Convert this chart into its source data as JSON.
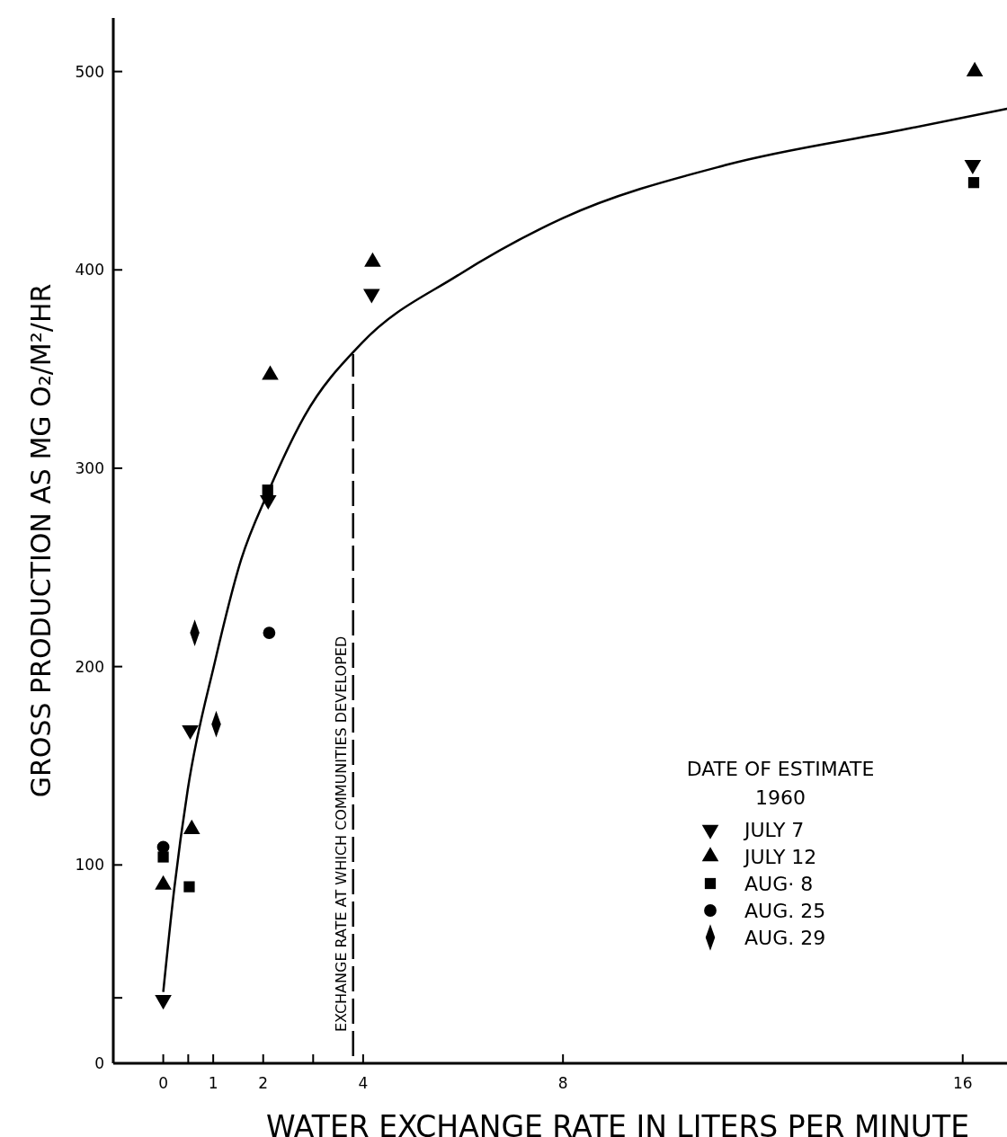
{
  "chart_data": {
    "type": "scatter",
    "xlabel": "WATER EXCHANGE RATE IN LITERS PER MINUTE",
    "ylabel": "GROSS PRODUCTION AS MG O₂/M²/HR",
    "legend_title": "DATE OF ESTIMATE\n1960",
    "legend": "bottom right",
    "grid": false,
    "xlim": [
      -1,
      17.03
    ],
    "ylim": [
      0,
      527
    ],
    "xticks": [
      0,
      {
        "value": 0.5,
        "label": null
      },
      1,
      2,
      {
        "value": 3,
        "label": null
      },
      4,
      8,
      16
    ],
    "yticks": [
      0,
      {
        "value": 33,
        "label": null
      },
      100,
      200,
      300,
      400,
      500
    ],
    "series": [
      {
        "name": "JULY 7",
        "color": "#000000",
        "marker": "triangle-down",
        "x": [
          0,
          0.54,
          2.1,
          4.17,
          16.2
        ],
        "values": [
          32,
          168,
          284,
          388,
          453
        ]
      },
      {
        "name": "JULY 12",
        "color": "#000000",
        "marker": "triangle",
        "x": [
          0,
          0.57,
          2.14,
          4.19,
          16.24
        ],
        "values": [
          90,
          118,
          347,
          404,
          500
        ]
      },
      {
        "name": "AUG· 8",
        "color": "#000000",
        "marker": "square",
        "x": [
          0,
          0.52,
          2.09,
          16.22
        ],
        "values": [
          104,
          89,
          289,
          444
        ]
      },
      {
        "name": "AUG. 25",
        "color": "#000000",
        "marker": "circle",
        "x": [
          0,
          2.12
        ],
        "values": [
          109,
          217
        ]
      },
      {
        "name": "AUG. 29",
        "color": "#000000",
        "marker": "diamond",
        "x": [
          0.63,
          1.06
        ],
        "values": [
          217,
          171
        ]
      },
      {
        "type": "line",
        "color": "#000000",
        "marker": "none",
        "x": [
          0,
          0.22,
          0.49,
          1.03,
          1.56,
          2.1,
          2.82,
          3.97,
          5.88,
          7.99,
          11.28,
          14.87,
          17.03
        ],
        "values": [
          36,
          88,
          138,
          202,
          254,
          288,
          326,
          363,
          397,
          426,
          453,
          471,
          482
        ]
      }
    ],
    "ref_lines": [
      {
        "axis": "x",
        "value": 3.8,
        "label": "EXCHANGE RATE AT WHICH COMMUNITIES DEVELOPED",
        "line_style": "dashed"
      }
    ]
  }
}
